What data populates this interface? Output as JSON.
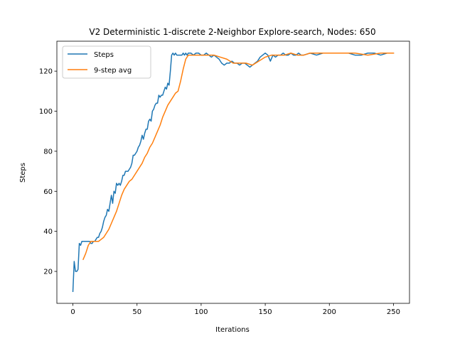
{
  "chart_data": {
    "type": "line",
    "title": "V2 Deterministic 1-discrete 2-Neighbor Explore-search,  Nodes: 650",
    "xlabel": "Iterations",
    "ylabel": "Steps",
    "xlim": [
      -12.5,
      262.5
    ],
    "ylim": [
      4.05,
      134.95
    ],
    "xticks": [
      0,
      50,
      100,
      150,
      200,
      250
    ],
    "yticks": [
      20,
      40,
      60,
      80,
      100,
      120
    ],
    "grid": false,
    "legend": "top-left",
    "series": [
      {
        "name": "Steps",
        "color": "#1f77b4",
        "x": [
          0,
          1,
          2,
          3,
          4,
          5,
          6,
          7,
          8,
          9,
          10,
          11,
          12,
          13,
          14,
          15,
          16,
          17,
          18,
          19,
          20,
          21,
          22,
          23,
          24,
          25,
          26,
          27,
          28,
          29,
          30,
          31,
          32,
          33,
          34,
          35,
          36,
          37,
          38,
          39,
          40,
          41,
          42,
          43,
          44,
          45,
          46,
          47,
          48,
          49,
          50,
          51,
          52,
          53,
          54,
          55,
          56,
          57,
          58,
          59,
          60,
          61,
          62,
          63,
          64,
          65,
          66,
          67,
          68,
          69,
          70,
          71,
          72,
          73,
          74,
          75,
          76,
          77,
          78,
          79,
          80,
          81,
          82,
          83,
          84,
          85,
          86,
          87,
          88,
          89,
          90,
          92,
          94,
          96,
          98,
          100,
          102,
          104,
          106,
          108,
          110,
          112,
          114,
          116,
          118,
          120,
          122,
          124,
          126,
          128,
          130,
          132,
          134,
          136,
          138,
          140,
          142,
          144,
          146,
          148,
          150,
          152,
          154,
          156,
          158,
          160,
          162,
          164,
          166,
          168,
          170,
          172,
          174,
          176,
          178,
          180,
          185,
          190,
          195,
          200,
          205,
          210,
          215,
          220,
          225,
          230,
          235,
          240,
          245,
          250
        ],
        "values": [
          10,
          25,
          20,
          20,
          21,
          34,
          33,
          35,
          35,
          35,
          35,
          35,
          35,
          35,
          34,
          34,
          35,
          35,
          36,
          37,
          37,
          39,
          40,
          42,
          45,
          47,
          48,
          51,
          50,
          54,
          58,
          54,
          60,
          59,
          64,
          63,
          64,
          63,
          65,
          68,
          68,
          70,
          70,
          70,
          71,
          72,
          74,
          78,
          78,
          79,
          80,
          82,
          83,
          85,
          88,
          86,
          89,
          91,
          91,
          95,
          96,
          95,
          100,
          101,
          103,
          104,
          104,
          108,
          107,
          108,
          108,
          110,
          112,
          111,
          114,
          113,
          120,
          128,
          129,
          128,
          129,
          128,
          128,
          128,
          128,
          128,
          129,
          128,
          129,
          128,
          129,
          129,
          128,
          129,
          129,
          128,
          128,
          129,
          128,
          127,
          128,
          127,
          126,
          124,
          123,
          124,
          124,
          125,
          124,
          124,
          123,
          124,
          124,
          123,
          122,
          123,
          124,
          125,
          127,
          128,
          129,
          128,
          125,
          128,
          127,
          128,
          128,
          129,
          128,
          128,
          129,
          128,
          128,
          129,
          128,
          128,
          129,
          128,
          129,
          129,
          129,
          129,
          129,
          128,
          128,
          129,
          129,
          128,
          129,
          129
        ]
      },
      {
        "name": "9-step avg",
        "color": "#ff7f0e",
        "x": [
          8,
          10,
          12,
          14,
          16,
          18,
          20,
          22,
          24,
          26,
          28,
          30,
          32,
          34,
          36,
          38,
          40,
          42,
          44,
          46,
          48,
          50,
          52,
          54,
          56,
          58,
          60,
          62,
          64,
          66,
          68,
          70,
          72,
          74,
          76,
          78,
          80,
          82,
          84,
          86,
          88,
          90,
          95,
          100,
          105,
          110,
          115,
          120,
          125,
          130,
          135,
          140,
          145,
          150,
          155,
          160,
          165,
          170,
          175,
          180,
          185,
          190,
          200,
          210,
          220,
          230,
          240,
          250
        ],
        "values": [
          26,
          29,
          33,
          35,
          35,
          35,
          35,
          36,
          37,
          39,
          41,
          44,
          47,
          50,
          54,
          58,
          61,
          63,
          65,
          66,
          68,
          70,
          72,
          74,
          77,
          79,
          82,
          84,
          87,
          90,
          93,
          97,
          100,
          103,
          105,
          107,
          109,
          110,
          115,
          121,
          126,
          128,
          128,
          128,
          128,
          128,
          127,
          126,
          124,
          124,
          124,
          123,
          125,
          127,
          128,
          128,
          128,
          129,
          128,
          128,
          129,
          129,
          129,
          129,
          129,
          128,
          129,
          129
        ]
      }
    ]
  }
}
